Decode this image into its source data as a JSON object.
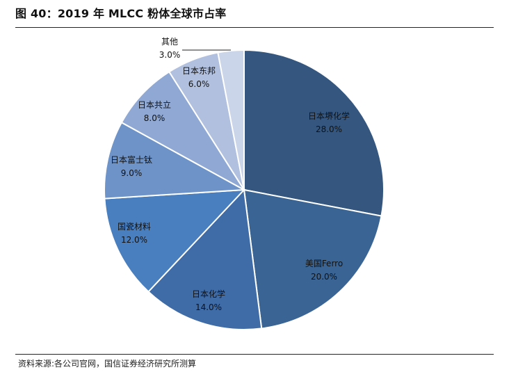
{
  "figure": {
    "title": "图 40：2019 年 MLCC 粉体全球市占率",
    "source": "资料来源:各公司官网，国信证券经济研究所测算"
  },
  "chart_data": {
    "type": "pie",
    "title": "",
    "start_angle_deg": 0,
    "direction": "clockwise",
    "categories": [
      "日本堺化学",
      "美国Ferro",
      "日本化学",
      "国瓷材料",
      "日本富士钛",
      "日本共立",
      "日本东邦",
      "其他"
    ],
    "values": [
      28.0,
      20.0,
      14.0,
      12.0,
      9.0,
      8.0,
      6.0,
      3.0
    ],
    "value_labels": [
      "28.0%",
      "20.0%",
      "14.0%",
      "12.0%",
      "9.0%",
      "8.0%",
      "6.0%",
      "3.0%"
    ],
    "colors": [
      "#35577f",
      "#3a6494",
      "#3f6ba7",
      "#4a7fbf",
      "#6d93c9",
      "#90a9d4",
      "#b1c0df",
      "#cbd5ea"
    ]
  }
}
